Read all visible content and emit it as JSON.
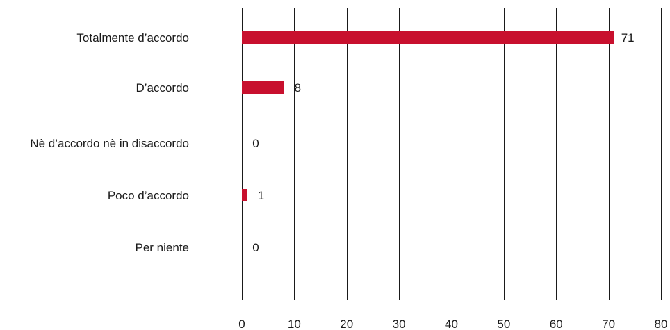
{
  "chart_data": {
    "type": "bar",
    "orientation": "horizontal",
    "title": "",
    "xlabel": "",
    "ylabel": "",
    "categories": [
      "Totalmente d’accordo",
      "D’accordo",
      "Nè d’accordo nè in disaccordo",
      "Poco d’accordo",
      "Per niente"
    ],
    "values": [
      71,
      8,
      0,
      1,
      0
    ],
    "xlim": [
      0,
      80
    ],
    "xticks": [
      0,
      10,
      20,
      30,
      40,
      50,
      60,
      70,
      80
    ],
    "grid": "vertical",
    "legend": "none",
    "bar_color": "#c8102e"
  }
}
